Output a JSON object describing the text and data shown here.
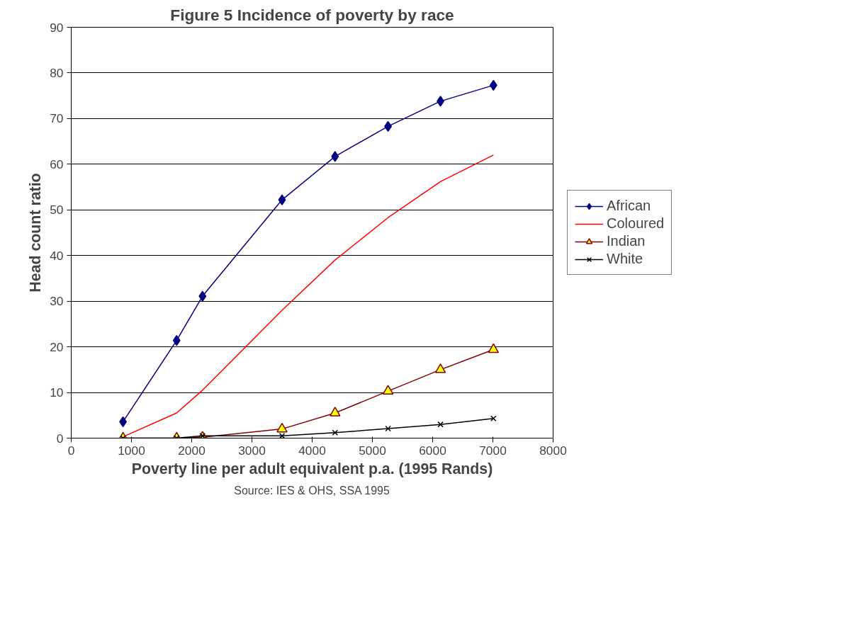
{
  "chart_data": {
    "type": "line",
    "title": "Figure 5 Incidence of poverty by race",
    "xlabel": "Poverty line per adult equivalent p.a. (1995 Rands)",
    "ylabel": "Head count ratio",
    "x": [
      860,
      1750,
      2180,
      3500,
      4380,
      5260,
      6130,
      7010
    ],
    "series": [
      {
        "name": "African",
        "color": "#000080",
        "marker": "diamond",
        "values": [
          3.6,
          21.4,
          31.1,
          52.2,
          61.7,
          68.3,
          73.8,
          77.3
        ]
      },
      {
        "name": "Coloured",
        "color": "#ff0000",
        "marker": "none",
        "values": [
          0.3,
          5.5,
          10.5,
          28,
          39,
          48.3,
          56.2,
          62
        ]
      },
      {
        "name": "Indian",
        "color": "#800000",
        "marker": "triangle",
        "values": [
          0,
          0,
          0.2,
          2.0,
          5.5,
          10.3,
          15.0,
          19.4
        ]
      },
      {
        "name": "White",
        "color": "#000000",
        "marker": "cross",
        "values": [
          0,
          0,
          0.5,
          0.5,
          1.2,
          2.1,
          3.0,
          4.3
        ]
      }
    ],
    "xlim": [
      0,
      8000
    ],
    "xticks": [
      0,
      1000,
      2000,
      3000,
      4000,
      5000,
      6000,
      7000,
      8000
    ],
    "ylim": [
      0,
      90
    ],
    "yticks": [
      0,
      10,
      20,
      30,
      40,
      50,
      60,
      70,
      80,
      90
    ],
    "grid": "y",
    "legend": "right",
    "annotations": [
      "Source: IES & OHS, SSA 1995"
    ]
  }
}
